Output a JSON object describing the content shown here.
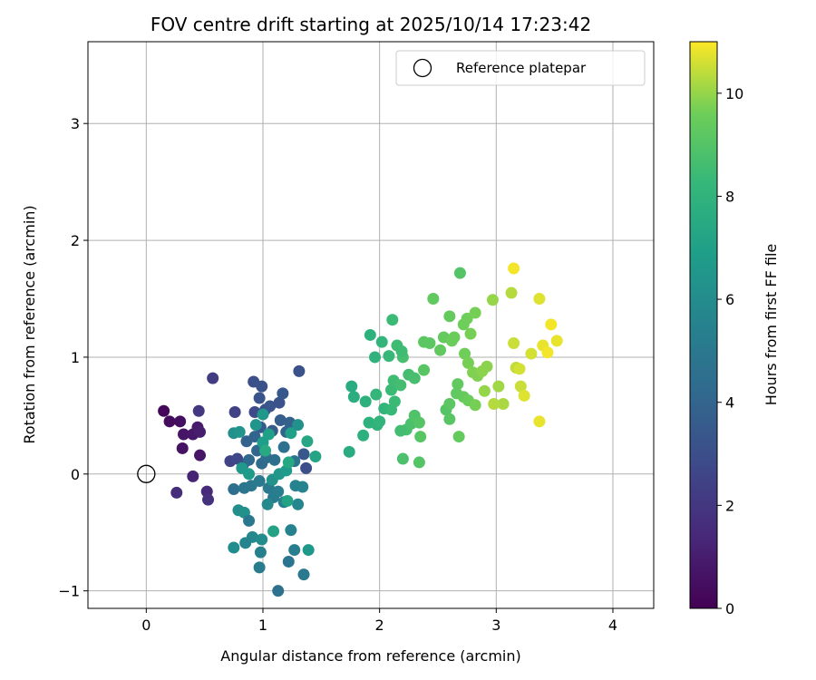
{
  "chart_data": {
    "type": "scatter",
    "title": "FOV centre drift starting at 2025/10/14 17:23:42",
    "xlabel": "Angular distance from reference (arcmin)",
    "ylabel": "Rotation from reference (arcmin)",
    "colorbar_label": "Hours from first FF file",
    "colormap": "viridis",
    "xlim": [
      -0.5,
      4.35
    ],
    "ylim": [
      -1.15,
      3.7
    ],
    "clim": [
      0,
      11
    ],
    "xticks": [
      0,
      1,
      2,
      3,
      4
    ],
    "yticks": [
      -1,
      0,
      1,
      2,
      3
    ],
    "colorbar_ticks": [
      0,
      2,
      4,
      6,
      8,
      10
    ],
    "grid": true,
    "legend": {
      "position": "top-right",
      "entries": [
        "Reference platepar"
      ]
    },
    "reference_point": {
      "x": 0,
      "y": 0,
      "marker": "open-circle"
    },
    "points": [
      {
        "x": 0.15,
        "y": 0.54,
        "c": 0.2
      },
      {
        "x": 0.2,
        "y": 0.45,
        "c": 0.4
      },
      {
        "x": 0.29,
        "y": 0.45,
        "c": 0.5
      },
      {
        "x": 0.32,
        "y": 0.34,
        "c": 0.7
      },
      {
        "x": 0.4,
        "y": 0.34,
        "c": 0.8
      },
      {
        "x": 0.44,
        "y": 0.4,
        "c": 0.9
      },
      {
        "x": 0.46,
        "y": 0.36,
        "c": 1.0
      },
      {
        "x": 0.31,
        "y": 0.22,
        "c": 0.6
      },
      {
        "x": 0.46,
        "y": 0.16,
        "c": 0.7
      },
      {
        "x": 0.4,
        "y": -0.02,
        "c": 1.2
      },
      {
        "x": 0.26,
        "y": -0.16,
        "c": 1.6
      },
      {
        "x": 0.52,
        "y": -0.15,
        "c": 1.5
      },
      {
        "x": 0.53,
        "y": -0.22,
        "c": 1.8
      },
      {
        "x": 0.45,
        "y": 0.54,
        "c": 2.0
      },
      {
        "x": 0.57,
        "y": 0.82,
        "c": 2.2
      },
      {
        "x": 0.76,
        "y": 0.53,
        "c": 2.4
      },
      {
        "x": 0.72,
        "y": 0.11,
        "c": 2.5
      },
      {
        "x": 0.78,
        "y": 0.13,
        "c": 2.7
      },
      {
        "x": 0.83,
        "y": 0.08,
        "c": 2.9
      },
      {
        "x": 0.92,
        "y": 0.79,
        "c": 3.0
      },
      {
        "x": 0.99,
        "y": 0.75,
        "c": 3.1
      },
      {
        "x": 0.97,
        "y": 0.65,
        "c": 3.2
      },
      {
        "x": 1.02,
        "y": 0.55,
        "c": 3.1
      },
      {
        "x": 1.06,
        "y": 0.58,
        "c": 3.3
      },
      {
        "x": 1.14,
        "y": 0.61,
        "c": 3.2
      },
      {
        "x": 1.17,
        "y": 0.69,
        "c": 3.4
      },
      {
        "x": 1.31,
        "y": 0.88,
        "c": 3.1
      },
      {
        "x": 0.93,
        "y": 0.53,
        "c": 2.8
      },
      {
        "x": 0.98,
        "y": 0.4,
        "c": 3.5
      },
      {
        "x": 1.08,
        "y": 0.37,
        "c": 3.6
      },
      {
        "x": 1.15,
        "y": 0.46,
        "c": 3.7
      },
      {
        "x": 1.23,
        "y": 0.44,
        "c": 3.8
      },
      {
        "x": 1.2,
        "y": 0.36,
        "c": 3.9
      },
      {
        "x": 0.86,
        "y": 0.28,
        "c": 3.9
      },
      {
        "x": 0.93,
        "y": 0.32,
        "c": 4.0
      },
      {
        "x": 0.95,
        "y": 0.2,
        "c": 4.1
      },
      {
        "x": 0.88,
        "y": 0.12,
        "c": 4.2
      },
      {
        "x": 0.99,
        "y": 0.09,
        "c": 4.3
      },
      {
        "x": 1.03,
        "y": 0.14,
        "c": 4.4
      },
      {
        "x": 1.1,
        "y": 0.12,
        "c": 4.5
      },
      {
        "x": 1.18,
        "y": 0.23,
        "c": 4.6
      },
      {
        "x": 1.27,
        "y": 0.11,
        "c": 4.7
      },
      {
        "x": 0.75,
        "y": -0.13,
        "c": 4.5
      },
      {
        "x": 0.84,
        "y": -0.12,
        "c": 4.8
      },
      {
        "x": 0.9,
        "y": -0.1,
        "c": 4.9
      },
      {
        "x": 0.97,
        "y": -0.06,
        "c": 5.0
      },
      {
        "x": 1.05,
        "y": -0.12,
        "c": 5.1
      },
      {
        "x": 1.09,
        "y": -0.2,
        "c": 5.2
      },
      {
        "x": 1.13,
        "y": -0.15,
        "c": 5.3
      },
      {
        "x": 1.18,
        "y": -0.24,
        "c": 5.4
      },
      {
        "x": 1.28,
        "y": -0.1,
        "c": 5.5
      },
      {
        "x": 1.35,
        "y": 0.17,
        "c": 3.4
      },
      {
        "x": 1.37,
        "y": 0.05,
        "c": 3.0
      },
      {
        "x": 1.34,
        "y": -0.11,
        "c": 5.6
      },
      {
        "x": 1.3,
        "y": -0.26,
        "c": 5.7
      },
      {
        "x": 1.24,
        "y": -0.48,
        "c": 5.5
      },
      {
        "x": 1.27,
        "y": -0.65,
        "c": 5.3
      },
      {
        "x": 1.35,
        "y": -0.86,
        "c": 5.0
      },
      {
        "x": 1.22,
        "y": -0.75,
        "c": 4.8
      },
      {
        "x": 1.13,
        "y": -1.0,
        "c": 4.6
      },
      {
        "x": 0.97,
        "y": -0.8,
        "c": 5.2
      },
      {
        "x": 0.98,
        "y": -0.67,
        "c": 5.4
      },
      {
        "x": 0.91,
        "y": -0.54,
        "c": 5.8
      },
      {
        "x": 0.85,
        "y": -0.59,
        "c": 5.6
      },
      {
        "x": 0.75,
        "y": -0.63,
        "c": 6.0
      },
      {
        "x": 0.79,
        "y": -0.31,
        "c": 6.1
      },
      {
        "x": 0.84,
        "y": -0.33,
        "c": 6.2
      },
      {
        "x": 0.88,
        "y": -0.4,
        "c": 4.9
      },
      {
        "x": 0.99,
        "y": -0.56,
        "c": 6.0
      },
      {
        "x": 1.09,
        "y": -0.49,
        "c": 7.1
      },
      {
        "x": 1.39,
        "y": -0.65,
        "c": 6.6
      },
      {
        "x": 1.04,
        "y": -0.26,
        "c": 5.9
      },
      {
        "x": 1.08,
        "y": -0.05,
        "c": 6.3
      },
      {
        "x": 1.14,
        "y": 0.0,
        "c": 6.5
      },
      {
        "x": 1.2,
        "y": 0.03,
        "c": 6.7
      },
      {
        "x": 0.82,
        "y": 0.05,
        "c": 6.6
      },
      {
        "x": 0.88,
        "y": 0.0,
        "c": 6.8
      },
      {
        "x": 0.94,
        "y": 0.42,
        "c": 6.4
      },
      {
        "x": 0.75,
        "y": 0.35,
        "c": 6.2
      },
      {
        "x": 0.8,
        "y": 0.36,
        "c": 6.4
      },
      {
        "x": 1.0,
        "y": 0.27,
        "c": 6.9
      },
      {
        "x": 1.05,
        "y": 0.34,
        "c": 7.0
      },
      {
        "x": 1.0,
        "y": 0.51,
        "c": 6.5
      },
      {
        "x": 1.24,
        "y": 0.35,
        "c": 7.0
      },
      {
        "x": 1.3,
        "y": 0.42,
        "c": 6.2
      },
      {
        "x": 1.38,
        "y": 0.28,
        "c": 7.3
      },
      {
        "x": 1.45,
        "y": 0.15,
        "c": 7.2
      },
      {
        "x": 1.22,
        "y": 0.1,
        "c": 7.4
      },
      {
        "x": 1.21,
        "y": -0.23,
        "c": 7.1
      },
      {
        "x": 1.02,
        "y": 0.2,
        "c": 7.5
      },
      {
        "x": 1.74,
        "y": 0.19,
        "c": 7.6
      },
      {
        "x": 1.76,
        "y": 0.75,
        "c": 7.6
      },
      {
        "x": 1.78,
        "y": 0.66,
        "c": 7.7
      },
      {
        "x": 1.88,
        "y": 0.62,
        "c": 7.8
      },
      {
        "x": 1.86,
        "y": 0.33,
        "c": 7.8
      },
      {
        "x": 1.91,
        "y": 0.44,
        "c": 7.9
      },
      {
        "x": 1.98,
        "y": 0.42,
        "c": 8.0
      },
      {
        "x": 2.0,
        "y": 0.45,
        "c": 8.1
      },
      {
        "x": 2.04,
        "y": 0.56,
        "c": 8.1
      },
      {
        "x": 1.97,
        "y": 0.68,
        "c": 8.2
      },
      {
        "x": 2.1,
        "y": 0.55,
        "c": 8.3
      },
      {
        "x": 2.13,
        "y": 0.62,
        "c": 8.4
      },
      {
        "x": 2.1,
        "y": 0.72,
        "c": 8.4
      },
      {
        "x": 2.12,
        "y": 0.8,
        "c": 8.5
      },
      {
        "x": 2.18,
        "y": 0.76,
        "c": 8.6
      },
      {
        "x": 2.25,
        "y": 0.85,
        "c": 8.6
      },
      {
        "x": 2.3,
        "y": 0.82,
        "c": 8.7
      },
      {
        "x": 2.2,
        "y": 1.0,
        "c": 8.7
      },
      {
        "x": 1.92,
        "y": 1.19,
        "c": 7.9
      },
      {
        "x": 1.96,
        "y": 1.0,
        "c": 8.0
      },
      {
        "x": 2.02,
        "y": 1.13,
        "c": 8.1
      },
      {
        "x": 2.08,
        "y": 1.01,
        "c": 8.3
      },
      {
        "x": 2.11,
        "y": 1.32,
        "c": 8.4
      },
      {
        "x": 2.15,
        "y": 1.1,
        "c": 8.5
      },
      {
        "x": 2.19,
        "y": 1.05,
        "c": 8.5
      },
      {
        "x": 2.23,
        "y": 0.38,
        "c": 8.7
      },
      {
        "x": 2.18,
        "y": 0.37,
        "c": 8.6
      },
      {
        "x": 2.27,
        "y": 0.43,
        "c": 8.8
      },
      {
        "x": 2.3,
        "y": 0.5,
        "c": 8.9
      },
      {
        "x": 2.34,
        "y": 0.44,
        "c": 9.0
      },
      {
        "x": 2.2,
        "y": 0.13,
        "c": 8.8
      },
      {
        "x": 2.34,
        "y": 0.1,
        "c": 9.0
      },
      {
        "x": 2.35,
        "y": 0.32,
        "c": 9.1
      },
      {
        "x": 2.38,
        "y": 0.89,
        "c": 9.1
      },
      {
        "x": 2.38,
        "y": 1.13,
        "c": 9.2
      },
      {
        "x": 2.43,
        "y": 1.12,
        "c": 9.2
      },
      {
        "x": 2.46,
        "y": 1.5,
        "c": 9.3
      },
      {
        "x": 2.52,
        "y": 1.06,
        "c": 9.3
      },
      {
        "x": 2.55,
        "y": 1.17,
        "c": 9.4
      },
      {
        "x": 2.6,
        "y": 1.35,
        "c": 9.4
      },
      {
        "x": 2.62,
        "y": 1.14,
        "c": 9.5
      },
      {
        "x": 2.64,
        "y": 1.17,
        "c": 9.5
      },
      {
        "x": 2.69,
        "y": 1.72,
        "c": 9.0
      },
      {
        "x": 2.72,
        "y": 1.28,
        "c": 9.6
      },
      {
        "x": 2.75,
        "y": 1.33,
        "c": 9.6
      },
      {
        "x": 2.78,
        "y": 1.2,
        "c": 9.7
      },
      {
        "x": 2.82,
        "y": 1.38,
        "c": 9.7
      },
      {
        "x": 2.73,
        "y": 1.03,
        "c": 9.6
      },
      {
        "x": 2.76,
        "y": 0.95,
        "c": 9.7
      },
      {
        "x": 2.8,
        "y": 0.87,
        "c": 9.8
      },
      {
        "x": 2.84,
        "y": 0.84,
        "c": 9.8
      },
      {
        "x": 2.88,
        "y": 0.88,
        "c": 9.9
      },
      {
        "x": 2.92,
        "y": 0.92,
        "c": 9.9
      },
      {
        "x": 2.57,
        "y": 0.55,
        "c": 9.0
      },
      {
        "x": 2.6,
        "y": 0.47,
        "c": 9.1
      },
      {
        "x": 2.6,
        "y": 0.6,
        "c": 9.2
      },
      {
        "x": 2.66,
        "y": 0.69,
        "c": 9.3
      },
      {
        "x": 2.67,
        "y": 0.77,
        "c": 9.3
      },
      {
        "x": 2.72,
        "y": 0.66,
        "c": 9.4
      },
      {
        "x": 2.76,
        "y": 0.63,
        "c": 9.5
      },
      {
        "x": 2.68,
        "y": 0.32,
        "c": 9.4
      },
      {
        "x": 2.82,
        "y": 0.59,
        "c": 9.7
      },
      {
        "x": 2.9,
        "y": 0.71,
        "c": 10.0
      },
      {
        "x": 2.97,
        "y": 1.49,
        "c": 10.0
      },
      {
        "x": 3.02,
        "y": 0.75,
        "c": 10.1
      },
      {
        "x": 3.06,
        "y": 0.6,
        "c": 10.2
      },
      {
        "x": 3.13,
        "y": 1.55,
        "c": 10.3
      },
      {
        "x": 3.15,
        "y": 1.76,
        "c": 10.9
      },
      {
        "x": 3.15,
        "y": 1.12,
        "c": 10.5
      },
      {
        "x": 3.17,
        "y": 0.91,
        "c": 10.4
      },
      {
        "x": 3.2,
        "y": 0.9,
        "c": 10.6
      },
      {
        "x": 3.21,
        "y": 0.75,
        "c": 10.5
      },
      {
        "x": 3.24,
        "y": 0.67,
        "c": 10.7
      },
      {
        "x": 3.3,
        "y": 1.03,
        "c": 10.6
      },
      {
        "x": 3.37,
        "y": 1.5,
        "c": 10.7
      },
      {
        "x": 3.37,
        "y": 0.45,
        "c": 10.8
      },
      {
        "x": 3.4,
        "y": 1.1,
        "c": 10.8
      },
      {
        "x": 3.44,
        "y": 1.04,
        "c": 10.9
      },
      {
        "x": 3.47,
        "y": 1.28,
        "c": 10.9
      },
      {
        "x": 3.52,
        "y": 1.14,
        "c": 10.8
      },
      {
        "x": 2.98,
        "y": 0.6,
        "c": 10.3
      }
    ]
  }
}
